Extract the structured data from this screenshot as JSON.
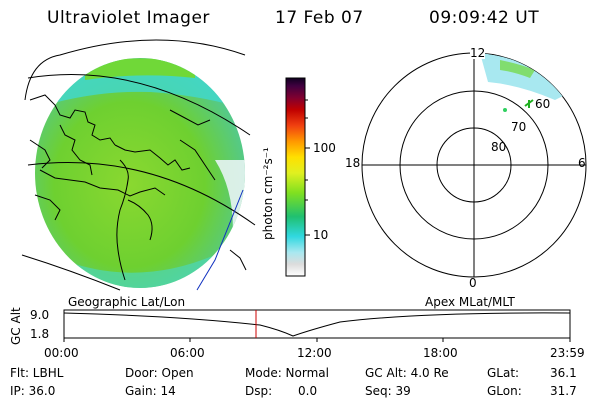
{
  "header": {
    "instrument": "Ultraviolet Imager",
    "date": "17 Feb 07",
    "time": "09:09:42 UT"
  },
  "colorbar": {
    "label": "photon cm⁻²s⁻¹",
    "ticks": [
      "100",
      "10"
    ],
    "tick_values": [
      100,
      10
    ]
  },
  "polar": {
    "mlt_labels": {
      "top": "12",
      "left": "18",
      "right": "6",
      "bottom": "0"
    },
    "lat_labels": [
      "60",
      "70",
      "80"
    ]
  },
  "panels": {
    "left_caption": "Geographic Lat/Lon",
    "right_caption": "Apex MLat/MLT"
  },
  "altitude_plot": {
    "ylabel": "GC Alt",
    "yticks": [
      "9.0",
      "1.8"
    ],
    "xticks": [
      "00:00",
      "06:00",
      "12:00",
      "18:00",
      "23:59"
    ],
    "marker_time": "09:09:42"
  },
  "info": {
    "flt": "Flt: LBHL",
    "door": "Door: Open",
    "mode": "Mode: Normal",
    "gcalt": "GC Alt: 4.0 Re",
    "glat_label": "GLat:",
    "glat_value": "36.1",
    "ip": "IP: 36.0",
    "gain": "Gain: 14",
    "dsp_label": "Dsp:",
    "dsp_value": "0.0",
    "seq": "Seq: 39",
    "glon_label": "GLon:",
    "glon_value": "31.7"
  },
  "colors": {
    "image_green": "#7fdc2a",
    "image_cyan": "#40e0d0",
    "marker_red": "#cc0000",
    "track_blue": "#1030c0"
  }
}
